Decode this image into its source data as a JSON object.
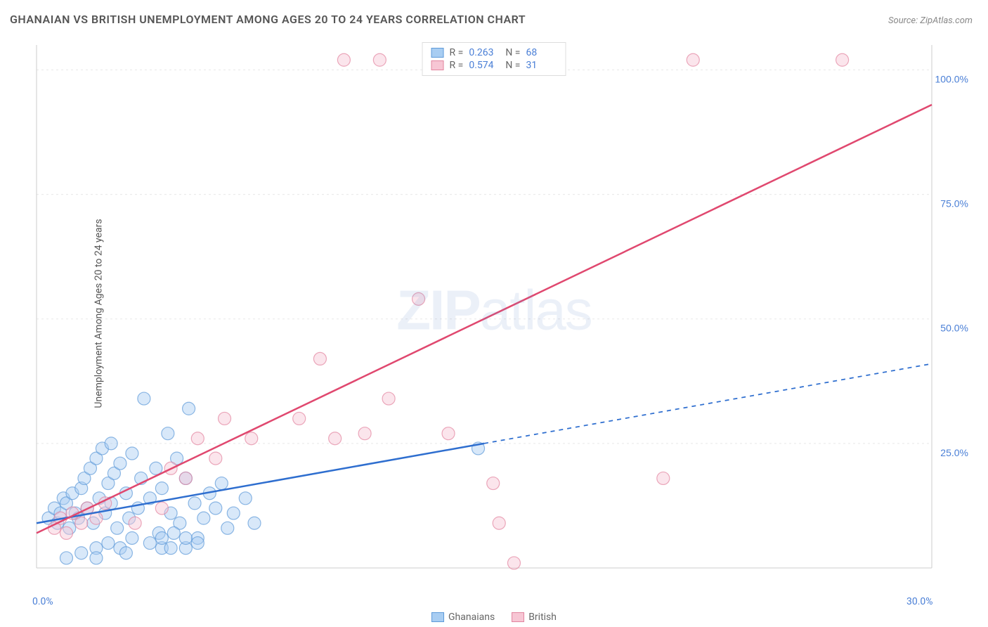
{
  "title": "GHANAIAN VS BRITISH UNEMPLOYMENT AMONG AGES 20 TO 24 YEARS CORRELATION CHART",
  "source": "Source: ZipAtlas.com",
  "ylabel": "Unemployment Among Ages 20 to 24 years",
  "watermark": {
    "bold": "ZIP",
    "light": "atlas"
  },
  "chart": {
    "type": "scatter",
    "xlim": [
      0,
      30
    ],
    "ylim": [
      0,
      105
    ],
    "x_ticks": [
      {
        "v": 0,
        "label": "0.0%"
      },
      {
        "v": 30,
        "label": "30.0%"
      }
    ],
    "y_ticks": [
      {
        "v": 25,
        "label": "25.0%"
      },
      {
        "v": 50,
        "label": "50.0%"
      },
      {
        "v": 75,
        "label": "75.0%"
      },
      {
        "v": 100,
        "label": "100.0%"
      }
    ],
    "grid_color": "#e8e8e8",
    "axis_color": "#cccccc",
    "background": "#ffffff",
    "label_color": "#4a7fd6",
    "marker_radius": 9,
    "marker_opacity": 0.45,
    "series": [
      {
        "name": "Ghanaians",
        "color_fill": "#a8cdf2",
        "color_stroke": "#5e9ad9",
        "R": "0.263",
        "N": "68",
        "trend": {
          "from": [
            0,
            9
          ],
          "to": [
            15,
            25
          ],
          "extend_to_x": 30,
          "color": "#2e6ecf",
          "width": 2.5,
          "dash_extend": true
        },
        "points": [
          [
            0.4,
            10
          ],
          [
            0.6,
            12
          ],
          [
            0.7,
            9
          ],
          [
            0.8,
            11
          ],
          [
            0.9,
            14
          ],
          [
            1.0,
            13
          ],
          [
            1.1,
            8
          ],
          [
            1.2,
            15
          ],
          [
            1.3,
            11
          ],
          [
            1.4,
            10
          ],
          [
            1.5,
            16
          ],
          [
            1.6,
            18
          ],
          [
            1.7,
            12
          ],
          [
            1.8,
            20
          ],
          [
            1.9,
            9
          ],
          [
            2.0,
            22
          ],
          [
            2.1,
            14
          ],
          [
            2.2,
            24
          ],
          [
            2.3,
            11
          ],
          [
            2.4,
            17
          ],
          [
            2.5,
            13
          ],
          [
            2.6,
            19
          ],
          [
            2.7,
            8
          ],
          [
            2.8,
            21
          ],
          [
            3.0,
            15
          ],
          [
            3.1,
            10
          ],
          [
            3.2,
            23
          ],
          [
            3.4,
            12
          ],
          [
            3.5,
            18
          ],
          [
            3.6,
            34
          ],
          [
            3.8,
            14
          ],
          [
            4.0,
            20
          ],
          [
            4.1,
            7
          ],
          [
            4.2,
            16
          ],
          [
            4.4,
            27
          ],
          [
            4.5,
            11
          ],
          [
            4.7,
            22
          ],
          [
            4.8,
            9
          ],
          [
            5.0,
            18
          ],
          [
            5.1,
            32
          ],
          [
            5.3,
            13
          ],
          [
            5.4,
            6
          ],
          [
            5.6,
            10
          ],
          [
            5.8,
            15
          ],
          [
            6.0,
            12
          ],
          [
            6.2,
            17
          ],
          [
            6.4,
            8
          ],
          [
            6.6,
            11
          ],
          [
            7.0,
            14
          ],
          [
            7.3,
            9
          ],
          [
            2.0,
            4
          ],
          [
            2.4,
            5
          ],
          [
            2.8,
            4
          ],
          [
            3.2,
            6
          ],
          [
            3.8,
            5
          ],
          [
            4.2,
            4
          ],
          [
            4.6,
            7
          ],
          [
            5.0,
            4
          ],
          [
            5.4,
            5
          ],
          [
            1.0,
            2
          ],
          [
            1.5,
            3
          ],
          [
            2.0,
            2
          ],
          [
            3.0,
            3
          ],
          [
            2.5,
            25
          ],
          [
            4.2,
            6
          ],
          [
            4.5,
            4
          ],
          [
            5.0,
            6
          ],
          [
            14.8,
            24
          ]
        ]
      },
      {
        "name": "British",
        "color_fill": "#f7c6d4",
        "color_stroke": "#e2859f",
        "R": "0.574",
        "N": "31",
        "trend": {
          "from": [
            0,
            7
          ],
          "to": [
            30,
            93
          ],
          "color": "#e0486f",
          "width": 2.5,
          "dash_extend": false
        },
        "points": [
          [
            0.6,
            8
          ],
          [
            0.8,
            10
          ],
          [
            1.0,
            7
          ],
          [
            1.2,
            11
          ],
          [
            1.5,
            9
          ],
          [
            1.7,
            12
          ],
          [
            2.0,
            10
          ],
          [
            2.3,
            13
          ],
          [
            3.3,
            9
          ],
          [
            4.2,
            12
          ],
          [
            4.5,
            20
          ],
          [
            5.0,
            18
          ],
          [
            5.4,
            26
          ],
          [
            6.0,
            22
          ],
          [
            6.3,
            30
          ],
          [
            7.2,
            26
          ],
          [
            8.8,
            30
          ],
          [
            9.5,
            42
          ],
          [
            10.0,
            26
          ],
          [
            11.0,
            27
          ],
          [
            11.8,
            34
          ],
          [
            12.8,
            54
          ],
          [
            13.8,
            27
          ],
          [
            15.3,
            17
          ],
          [
            15.5,
            9
          ],
          [
            16.0,
            1
          ],
          [
            21.0,
            18
          ],
          [
            22.0,
            102
          ],
          [
            27.0,
            102
          ],
          [
            10.3,
            102
          ],
          [
            11.5,
            102
          ]
        ]
      }
    ]
  },
  "legend_bottom": [
    {
      "label": "Ghanaians",
      "fill": "#a8cdf2",
      "stroke": "#5e9ad9"
    },
    {
      "label": "British",
      "fill": "#f7c6d4",
      "stroke": "#e2859f"
    }
  ]
}
